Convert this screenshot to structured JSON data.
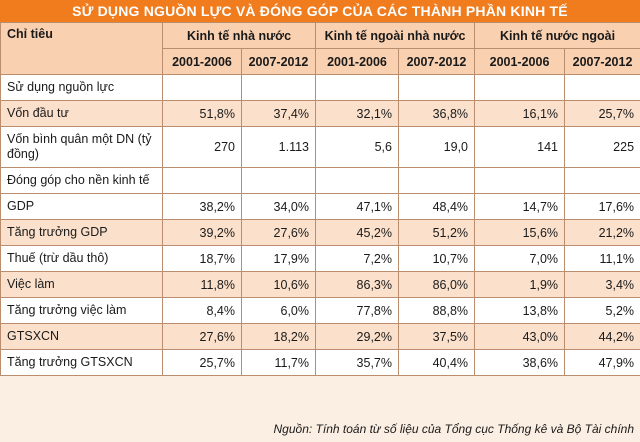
{
  "title": "SỬ DỤNG NGUỒN LỰC VÀ ĐÓNG GÓP CỦA CÁC THÀNH PHẦN KINH TẾ",
  "header": {
    "indicator": "Chỉ tiêu",
    "groups": [
      "Kinh tế nhà nước",
      "Kinh tế ngoài nhà nước",
      "Kinh tế nước ngoài"
    ],
    "periods": [
      "2001-2006",
      "2007-2012",
      "2001-2006",
      "2007-2012",
      "2001-2006",
      "2007-2012"
    ]
  },
  "rows": [
    {
      "label": "Sử dụng nguồn lực",
      "values": [
        "",
        "",
        "",
        "",
        "",
        ""
      ]
    },
    {
      "label": "Vốn đầu tư",
      "values": [
        "51,8%",
        "37,4%",
        "32,1%",
        "36,8%",
        "16,1%",
        "25,7%"
      ]
    },
    {
      "label": "Vốn bình quân một DN (tỷ đồng)",
      "values": [
        "270",
        "1.113",
        "5,6",
        "19,0",
        "141",
        "225"
      ]
    },
    {
      "label": "Đóng góp cho nền kinh tế",
      "values": [
        "",
        "",
        "",
        "",
        "",
        ""
      ]
    },
    {
      "label": "GDP",
      "values": [
        "38,2%",
        "34,0%",
        "47,1%",
        "48,4%",
        "14,7%",
        "17,6%"
      ]
    },
    {
      "label": "Tăng trưởng GDP",
      "values": [
        "39,2%",
        "27,6%",
        "45,2%",
        "51,2%",
        "15,6%",
        "21,2%"
      ]
    },
    {
      "label": "Thuế (trừ dầu thô)",
      "values": [
        "18,7%",
        "17,9%",
        "7,2%",
        "10,7%",
        "7,0%",
        "11,1%"
      ]
    },
    {
      "label": "Việc làm",
      "values": [
        "11,8%",
        "10,6%",
        "86,3%",
        "86,0%",
        "1,9%",
        "3,4%"
      ]
    },
    {
      "label": "Tăng trưởng việc làm",
      "values": [
        "8,4%",
        "6,0%",
        "77,8%",
        "88,8%",
        "13,8%",
        "5,2%"
      ]
    },
    {
      "label": "GTSXCN",
      "values": [
        "27,6%",
        "18,2%",
        "29,2%",
        "37,5%",
        "43,0%",
        "44,2%"
      ]
    },
    {
      "label": "Tăng trưởng GTSXCN",
      "values": [
        "25,7%",
        "11,7%",
        "35,7%",
        "40,4%",
        "38,6%",
        "47,9%"
      ]
    }
  ],
  "source": "Nguồn: Tính toán từ số liệu của Tổng cục Thống kê và Bộ Tài chính"
}
